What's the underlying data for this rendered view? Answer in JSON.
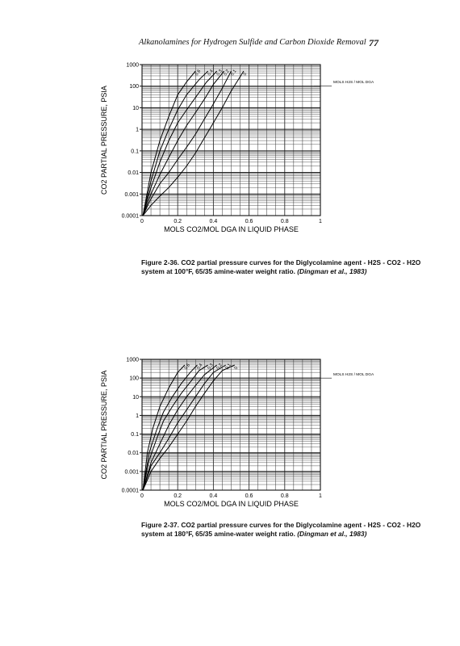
{
  "header": {
    "title": "Alkanolamines for Hydrogen Sulfide and Carbon Dioxide Removal",
    "page_number": "77"
  },
  "chart_data": [
    {
      "type": "line",
      "xlabel": "MOLS CO2/MOL DGA IN LIQUID PHASE",
      "ylabel": "CO2 PARTIAL PRESSURE, PSIA",
      "xlim": [
        0,
        1
      ],
      "ylim": [
        0.0001,
        1000
      ],
      "yscale": "log",
      "xticks": [
        "0",
        "0.2",
        "0.4",
        "0.6",
        "0.8",
        "1"
      ],
      "yticks": [
        "1000",
        "100",
        "10",
        "1",
        "0.1",
        "0.01",
        "0.001",
        "0.0001"
      ],
      "grid": true,
      "legend": "MOLS H2S / MOL DGA",
      "series": [
        {
          "name": "0.6",
          "x": [
            0.005,
            0.05,
            0.1,
            0.15,
            0.2,
            0.25,
            0.3
          ],
          "y": [
            0.0001,
            0.01,
            0.3,
            4,
            40,
            160,
            500
          ]
        },
        {
          "name": "0.4",
          "x": [
            0.005,
            0.05,
            0.1,
            0.15,
            0.2,
            0.25,
            0.32,
            0.37
          ],
          "y": [
            0.0001,
            0.004,
            0.1,
            1,
            8,
            40,
            200,
            500
          ]
        },
        {
          "name": "0.3",
          "x": [
            0.005,
            0.05,
            0.1,
            0.15,
            0.2,
            0.25,
            0.3,
            0.36,
            0.42
          ],
          "y": [
            0.0001,
            0.002,
            0.03,
            0.3,
            2,
            8,
            30,
            150,
            500
          ]
        },
        {
          "name": "0.2",
          "x": [
            0.005,
            0.05,
            0.1,
            0.15,
            0.2,
            0.25,
            0.3,
            0.35,
            0.4,
            0.46
          ],
          "y": [
            0.0001,
            0.001,
            0.008,
            0.05,
            0.3,
            1.5,
            6,
            25,
            120,
            500
          ]
        },
        {
          "name": "0.1",
          "x": [
            0.005,
            0.05,
            0.1,
            0.15,
            0.2,
            0.25,
            0.3,
            0.35,
            0.4,
            0.45,
            0.5
          ],
          "y": [
            0.0001,
            0.0006,
            0.003,
            0.01,
            0.04,
            0.15,
            0.6,
            3,
            15,
            80,
            500
          ]
        },
        {
          "name": "0",
          "x": [
            0.005,
            0.05,
            0.1,
            0.15,
            0.2,
            0.25,
            0.3,
            0.35,
            0.4,
            0.45,
            0.5,
            0.57
          ],
          "y": [
            0.0001,
            0.0003,
            0.0008,
            0.002,
            0.006,
            0.02,
            0.08,
            0.4,
            2,
            10,
            60,
            500
          ]
        }
      ]
    },
    {
      "type": "line",
      "xlabel": "MOLS CO2/MOL DGA IN LIQUID PHASE",
      "ylabel": "CO2 PARTIAL PRESSURE, PSIA",
      "xlim": [
        0,
        1
      ],
      "ylim": [
        0.0001,
        1000
      ],
      "yscale": "log",
      "xticks": [
        "0",
        "0.2",
        "0.4",
        "0.6",
        "0.8",
        "1"
      ],
      "yticks": [
        "1000",
        "100",
        "10",
        "1",
        "0.1",
        "0.01",
        "0.001",
        "0.0001"
      ],
      "grid": true,
      "legend": "MOLS H2S / MOL DGA",
      "series": [
        {
          "name": "0.6",
          "x": [
            0.005,
            0.03,
            0.06,
            0.1,
            0.15,
            0.2,
            0.24
          ],
          "y": [
            0.0001,
            0.01,
            0.2,
            3,
            30,
            200,
            500
          ]
        },
        {
          "name": "0.4",
          "x": [
            0.005,
            0.04,
            0.08,
            0.12,
            0.17,
            0.22,
            0.27,
            0.31
          ],
          "y": [
            0.0001,
            0.01,
            0.15,
            1.5,
            10,
            50,
            200,
            500
          ]
        },
        {
          "name": "0.3",
          "x": [
            0.005,
            0.04,
            0.08,
            0.12,
            0.17,
            0.22,
            0.27,
            0.32,
            0.37
          ],
          "y": [
            0.0001,
            0.004,
            0.05,
            0.5,
            3,
            15,
            60,
            250,
            500
          ]
        },
        {
          "name": "0.2",
          "x": [
            0.005,
            0.05,
            0.1,
            0.15,
            0.2,
            0.25,
            0.3,
            0.35,
            0.42
          ],
          "y": [
            0.0001,
            0.003,
            0.03,
            0.3,
            2,
            10,
            40,
            150,
            500
          ]
        },
        {
          "name": "0.1",
          "x": [
            0.005,
            0.05,
            0.1,
            0.15,
            0.2,
            0.25,
            0.3,
            0.35,
            0.4,
            0.47
          ],
          "y": [
            0.0001,
            0.002,
            0.01,
            0.06,
            0.4,
            2,
            10,
            50,
            200,
            500
          ]
        },
        {
          "name": "0",
          "x": [
            0.005,
            0.05,
            0.1,
            0.15,
            0.2,
            0.25,
            0.3,
            0.35,
            0.4,
            0.45,
            0.52
          ],
          "y": [
            0.0001,
            0.001,
            0.005,
            0.02,
            0.1,
            0.5,
            3,
            15,
            70,
            250,
            500
          ]
        }
      ]
    }
  ],
  "captions": [
    {
      "line1": "Figure 2-36. CO2 partial pressure curves for the Diglycolamine agent - H2S - CO2 - H2O",
      "line2": "system at 100°F, 65/35 amine-water weight ratio.",
      "citation": "(Dingman et al., 1983)"
    },
    {
      "line1": "Figure 2-37. CO2 partial pressure curves for the Diglycolamine agent - H2S - CO2 - H2O",
      "line2": "system at 180°F, 65/35 amine-water weight ratio.",
      "citation": "(Dingman et al., 1983)"
    }
  ]
}
